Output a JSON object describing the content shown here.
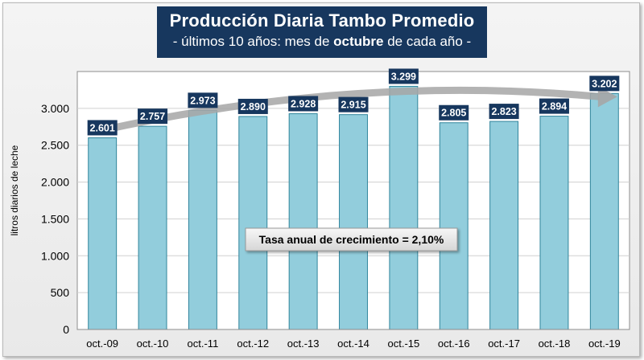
{
  "title": "Producción Diaria Tambo Promedio",
  "subtitle_prefix": "- últimos 10 años: mes de ",
  "subtitle_bold": "octubre",
  "subtitle_suffix": " de cada año -",
  "colors": {
    "bar_fill": "#92cddc",
    "bar_stroke": "#31859c",
    "label_box": "#17375e",
    "title_bg": "#17375e",
    "trend_arrow": "#a6a6a6"
  },
  "chart_data": {
    "type": "bar",
    "categories": [
      "oct.-09",
      "oct.-10",
      "oct.-11",
      "oct.-12",
      "oct.-13",
      "oct.-14",
      "oct.-15",
      "oct.-16",
      "oct.-17",
      "oct.-18",
      "oct.-19"
    ],
    "values": [
      2601,
      2757,
      2973,
      2890,
      2928,
      2915,
      3299,
      2805,
      2823,
      2894,
      3202
    ],
    "value_labels": [
      "2.601",
      "2.757",
      "2.973",
      "2.890",
      "2.928",
      "2.915",
      "3.299",
      "2.805",
      "2.823",
      "2.894",
      "3.202"
    ],
    "ylabel": "litros diarios de leche",
    "xlabel": "",
    "ylim": [
      0,
      3500
    ],
    "yticks": [
      0,
      500,
      1000,
      1500,
      2000,
      2500,
      3000
    ],
    "ytick_labels": [
      "0",
      "500",
      "1.000",
      "1.500",
      "2.000",
      "2.500",
      "3.000"
    ],
    "grid": true,
    "trend": {
      "type": "arrow",
      "from_category": "oct.-09",
      "to_category": "oct.-19"
    },
    "annotation": "Tasa anual de crecimiento = 2,10%"
  }
}
